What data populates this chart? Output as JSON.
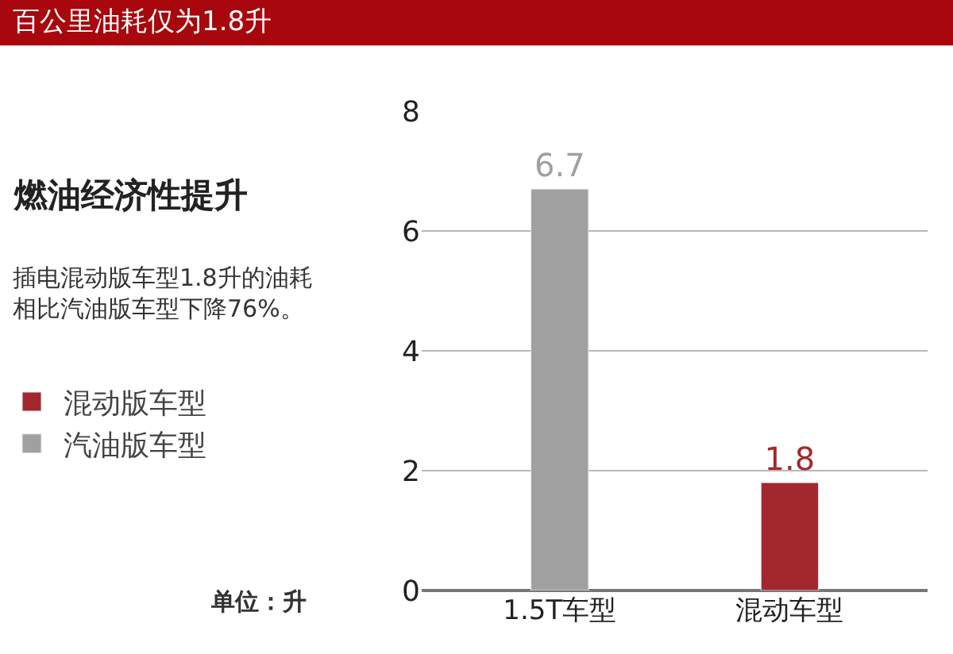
{
  "chart_data": {
    "type": "bar",
    "title": "百公里油耗仅为1.8升",
    "subtitle": "燃油经济性提升",
    "categories": [
      "1.5T车型",
      "混动车型"
    ],
    "series": [
      {
        "name": "混动版车型",
        "color": "#a3282d",
        "values": [
          null,
          1.8
        ]
      },
      {
        "name": "汽油版车型",
        "color": "#a0a0a0",
        "values": [
          6.7,
          null
        ]
      }
    ],
    "ylim": [
      0,
      8
    ],
    "yticks": [
      0,
      2,
      4,
      6,
      8
    ],
    "grid": "y",
    "legend": "left",
    "data_labels": true,
    "annotations": [
      "插电混动版车型1.8升的油耗相比汽油版车型下降76%。",
      "单位：升"
    ]
  }
}
